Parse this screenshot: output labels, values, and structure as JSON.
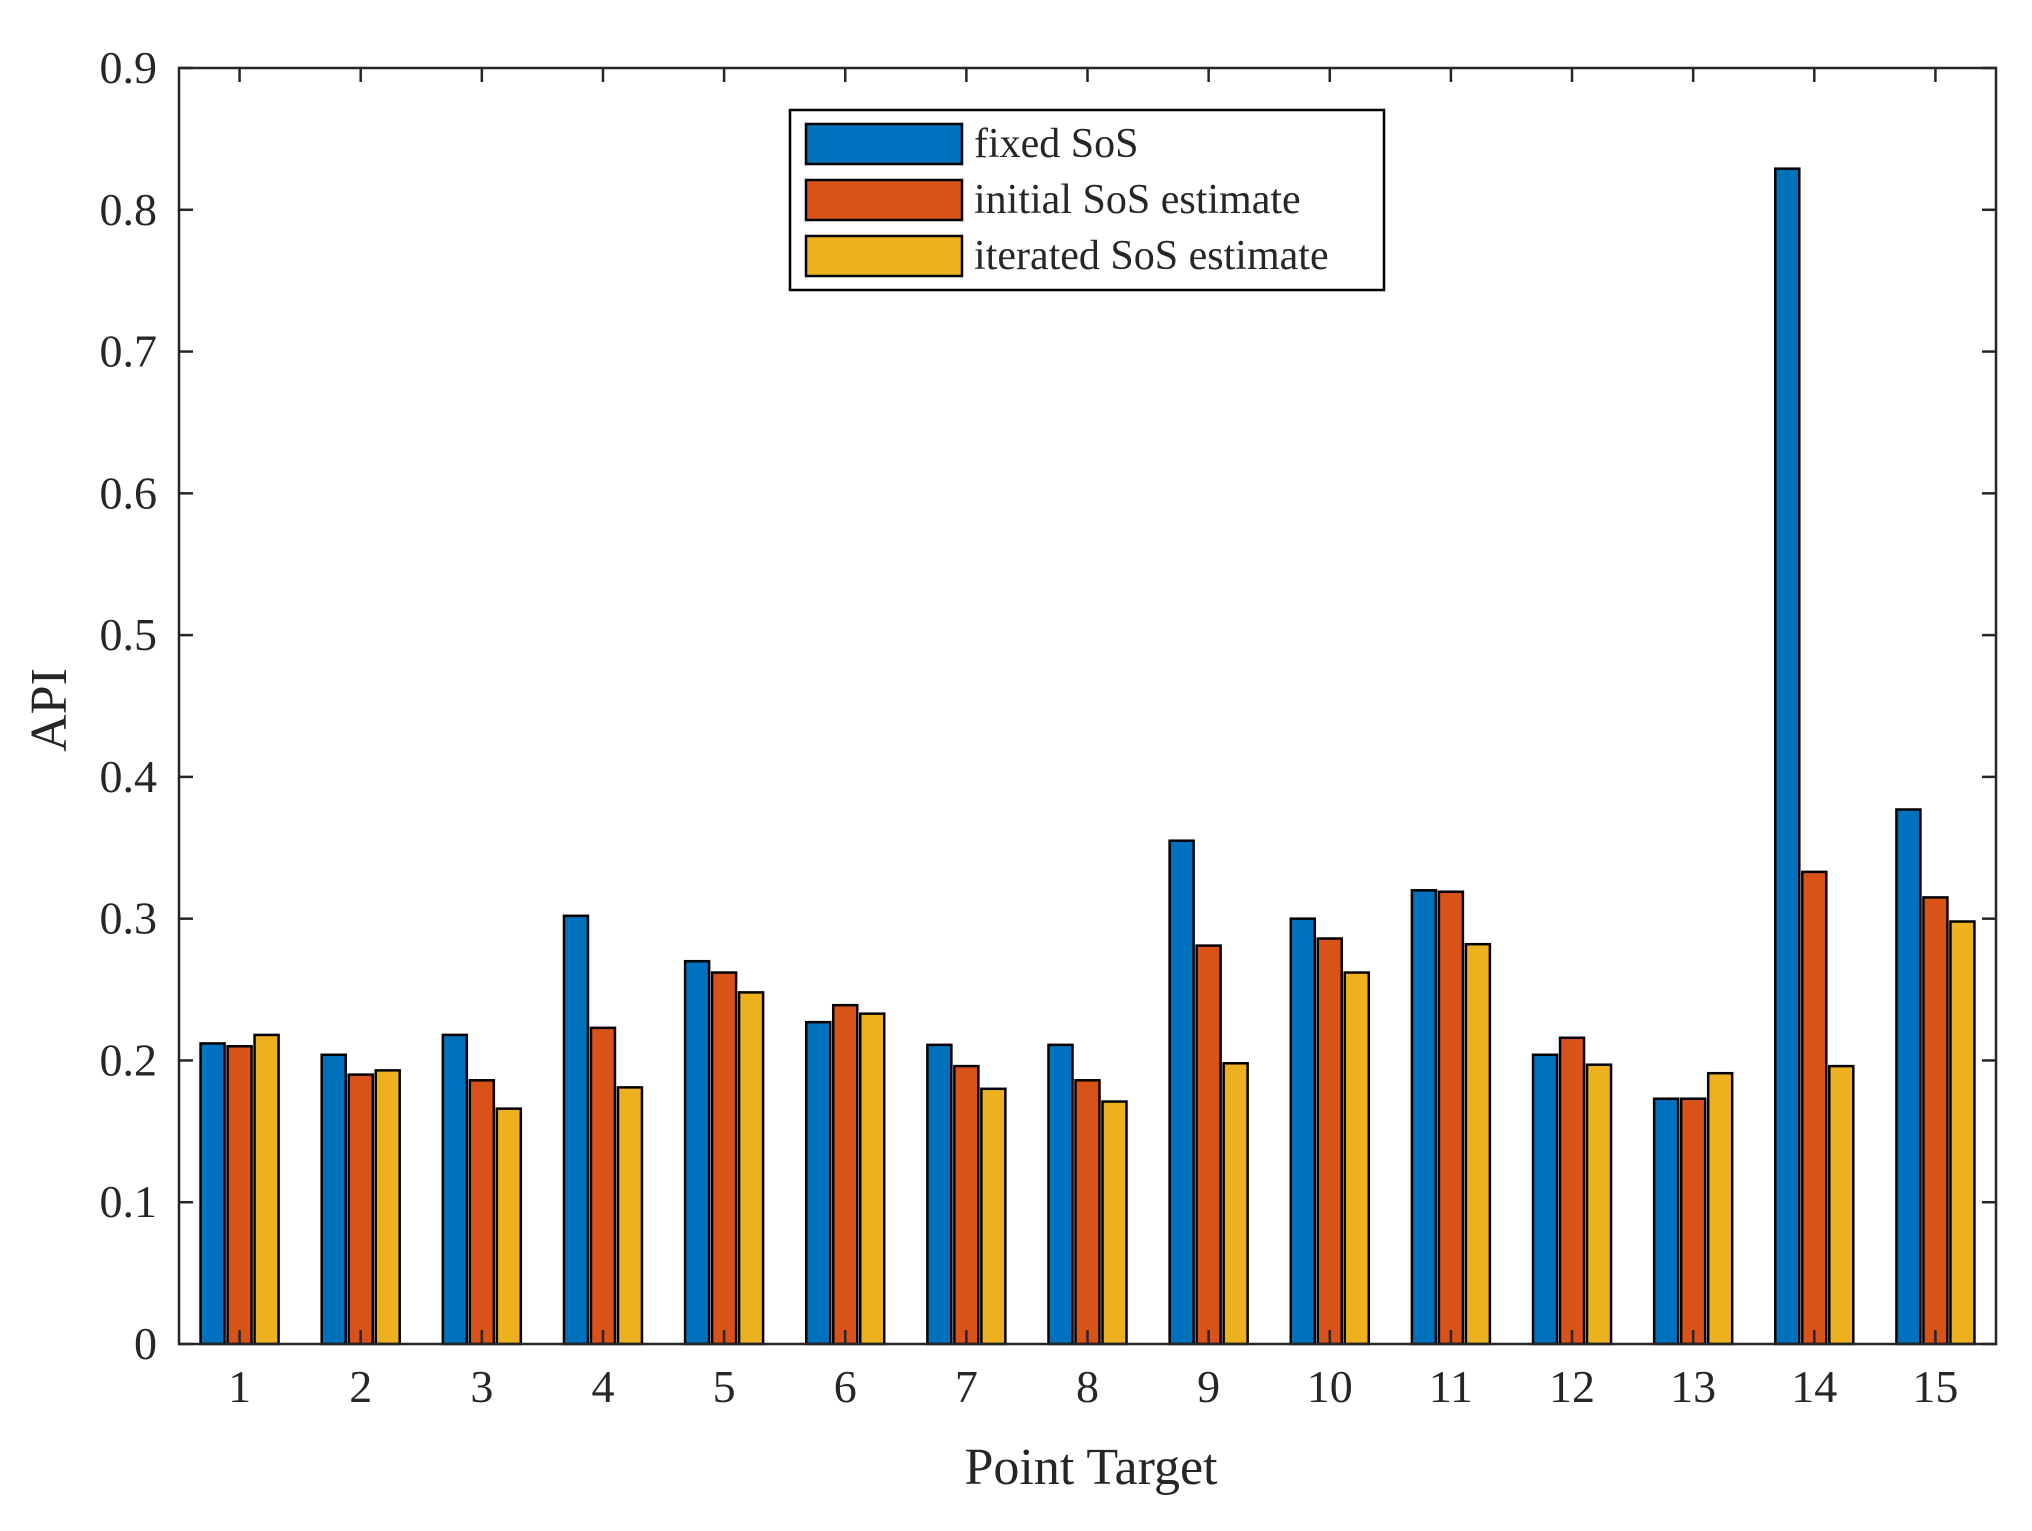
{
  "chart_data": {
    "type": "bar",
    "title": "",
    "xlabel": "Point Target",
    "ylabel": "API",
    "categories": [
      "1",
      "2",
      "3",
      "4",
      "5",
      "6",
      "7",
      "8",
      "9",
      "10",
      "11",
      "12",
      "13",
      "14",
      "15"
    ],
    "ylim": [
      0,
      0.9
    ],
    "yticks": [
      "0",
      "0.1",
      "0.2",
      "0.3",
      "0.4",
      "0.5",
      "0.6",
      "0.7",
      "0.8",
      "0.9"
    ],
    "grid": false,
    "legend_position": "top-center",
    "series": [
      {
        "name": "fixed SoS",
        "color": "#0072BD",
        "values": [
          0.212,
          0.204,
          0.218,
          0.302,
          0.27,
          0.227,
          0.211,
          0.211,
          0.355,
          0.3,
          0.32,
          0.204,
          0.173,
          0.829,
          0.377
        ]
      },
      {
        "name": "initial SoS estimate",
        "color": "#D95319",
        "values": [
          0.21,
          0.19,
          0.186,
          0.223,
          0.262,
          0.239,
          0.196,
          0.186,
          0.281,
          0.286,
          0.319,
          0.216,
          0.173,
          0.333,
          0.315
        ]
      },
      {
        "name": "iterated SoS estimate",
        "color": "#EDB120",
        "values": [
          0.218,
          0.193,
          0.166,
          0.181,
          0.248,
          0.233,
          0.18,
          0.171,
          0.198,
          0.262,
          0.282,
          0.197,
          0.191,
          0.196,
          0.298
        ]
      }
    ]
  }
}
